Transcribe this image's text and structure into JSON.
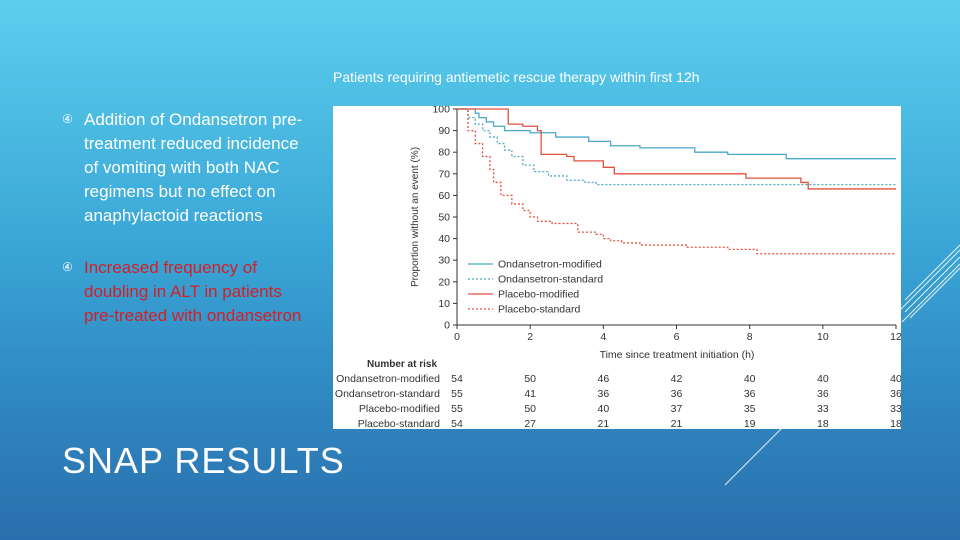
{
  "slide": {
    "title": "SNAP RESULTS",
    "bullets": [
      {
        "text": "Addition of Ondansetron pre-treatment reduced incidence of vomiting with both NAC regimens but no effect on anaphylactoid reactions",
        "color": "#ffffff"
      },
      {
        "text": "Increased frequency of doubling in ALT in patients pre-treated with ondansetron",
        "color": "#d31f26"
      }
    ],
    "bullet_icon": "circled-number-bullet-icon",
    "chart_caption": "Patients requiring antiemetic rescue therapy within first 12h"
  },
  "colors": {
    "ondansetron": "#4aa8c8",
    "placebo": "#e2503f",
    "axis": "#333333"
  },
  "chart_data": {
    "type": "line",
    "chart_subtype": "kaplan-meier step curve",
    "xlabel": "Time since treatment initiation (h)",
    "ylabel": "Proportion without an event (%)",
    "xlim": [
      0,
      12
    ],
    "ylim": [
      0,
      100
    ],
    "xticks": [
      0,
      2,
      4,
      6,
      8,
      10,
      12
    ],
    "yticks": [
      0,
      10,
      20,
      30,
      40,
      50,
      60,
      70,
      80,
      90,
      100
    ],
    "grid": false,
    "legend_position": "bottom-left inside plot",
    "series": [
      {
        "name": "Ondansetron-modified",
        "color": "#4aa8c8",
        "dash": false,
        "points": [
          [
            0,
            100
          ],
          [
            0.5,
            98
          ],
          [
            0.6,
            96
          ],
          [
            0.8,
            94
          ],
          [
            1.0,
            92
          ],
          [
            1.3,
            90
          ],
          [
            2.0,
            89
          ],
          [
            2.7,
            87
          ],
          [
            3.6,
            85
          ],
          [
            4.2,
            83
          ],
          [
            5.0,
            82
          ],
          [
            6.5,
            80
          ],
          [
            7.4,
            79
          ],
          [
            9.0,
            77
          ],
          [
            12,
            77
          ]
        ]
      },
      {
        "name": "Ondansetron-standard",
        "color": "#4aa8c8",
        "dash": true,
        "points": [
          [
            0,
            100
          ],
          [
            0.3,
            96
          ],
          [
            0.5,
            93
          ],
          [
            0.7,
            90
          ],
          [
            0.9,
            87
          ],
          [
            1.1,
            84
          ],
          [
            1.3,
            81
          ],
          [
            1.5,
            78
          ],
          [
            1.8,
            74
          ],
          [
            2.1,
            71
          ],
          [
            2.5,
            69
          ],
          [
            3.0,
            67
          ],
          [
            3.5,
            66
          ],
          [
            3.8,
            65
          ],
          [
            12,
            65
          ]
        ]
      },
      {
        "name": "Placebo-modified",
        "color": "#e2503f",
        "dash": false,
        "points": [
          [
            0,
            100
          ],
          [
            1.4,
            93
          ],
          [
            1.8,
            92
          ],
          [
            2.2,
            90
          ],
          [
            2.3,
            79
          ],
          [
            3.0,
            78
          ],
          [
            3.2,
            76
          ],
          [
            4.0,
            73
          ],
          [
            4.3,
            70
          ],
          [
            7.9,
            68
          ],
          [
            9.4,
            66
          ],
          [
            9.6,
            63
          ],
          [
            12,
            63
          ]
        ]
      },
      {
        "name": "Placebo-standard",
        "color": "#e2503f",
        "dash": true,
        "points": [
          [
            0,
            100
          ],
          [
            0.3,
            90
          ],
          [
            0.5,
            84
          ],
          [
            0.7,
            78
          ],
          [
            0.9,
            72
          ],
          [
            1.0,
            66
          ],
          [
            1.2,
            60
          ],
          [
            1.5,
            56
          ],
          [
            1.8,
            53
          ],
          [
            2.0,
            50
          ],
          [
            2.2,
            48
          ],
          [
            2.6,
            47
          ],
          [
            3.3,
            43
          ],
          [
            3.8,
            42
          ],
          [
            4.0,
            40
          ],
          [
            4.2,
            39
          ],
          [
            4.5,
            38
          ],
          [
            5.0,
            37
          ],
          [
            6.3,
            36
          ],
          [
            7.4,
            35
          ],
          [
            8.2,
            33
          ],
          [
            12,
            33
          ]
        ]
      }
    ],
    "risk_table": {
      "title": "Number at risk",
      "times": [
        0,
        2,
        4,
        6,
        8,
        10,
        12
      ],
      "rows": [
        {
          "label": "Ondansetron-modified",
          "values": [
            54,
            50,
            46,
            42,
            40,
            40,
            40
          ]
        },
        {
          "label": "Ondansetron-standard",
          "values": [
            55,
            41,
            36,
            36,
            36,
            36,
            36
          ]
        },
        {
          "label": "Placebo-modified",
          "values": [
            55,
            50,
            40,
            37,
            35,
            33,
            33
          ]
        },
        {
          "label": "Placebo-standard",
          "values": [
            54,
            27,
            21,
            21,
            19,
            18,
            18
          ]
        }
      ]
    }
  }
}
